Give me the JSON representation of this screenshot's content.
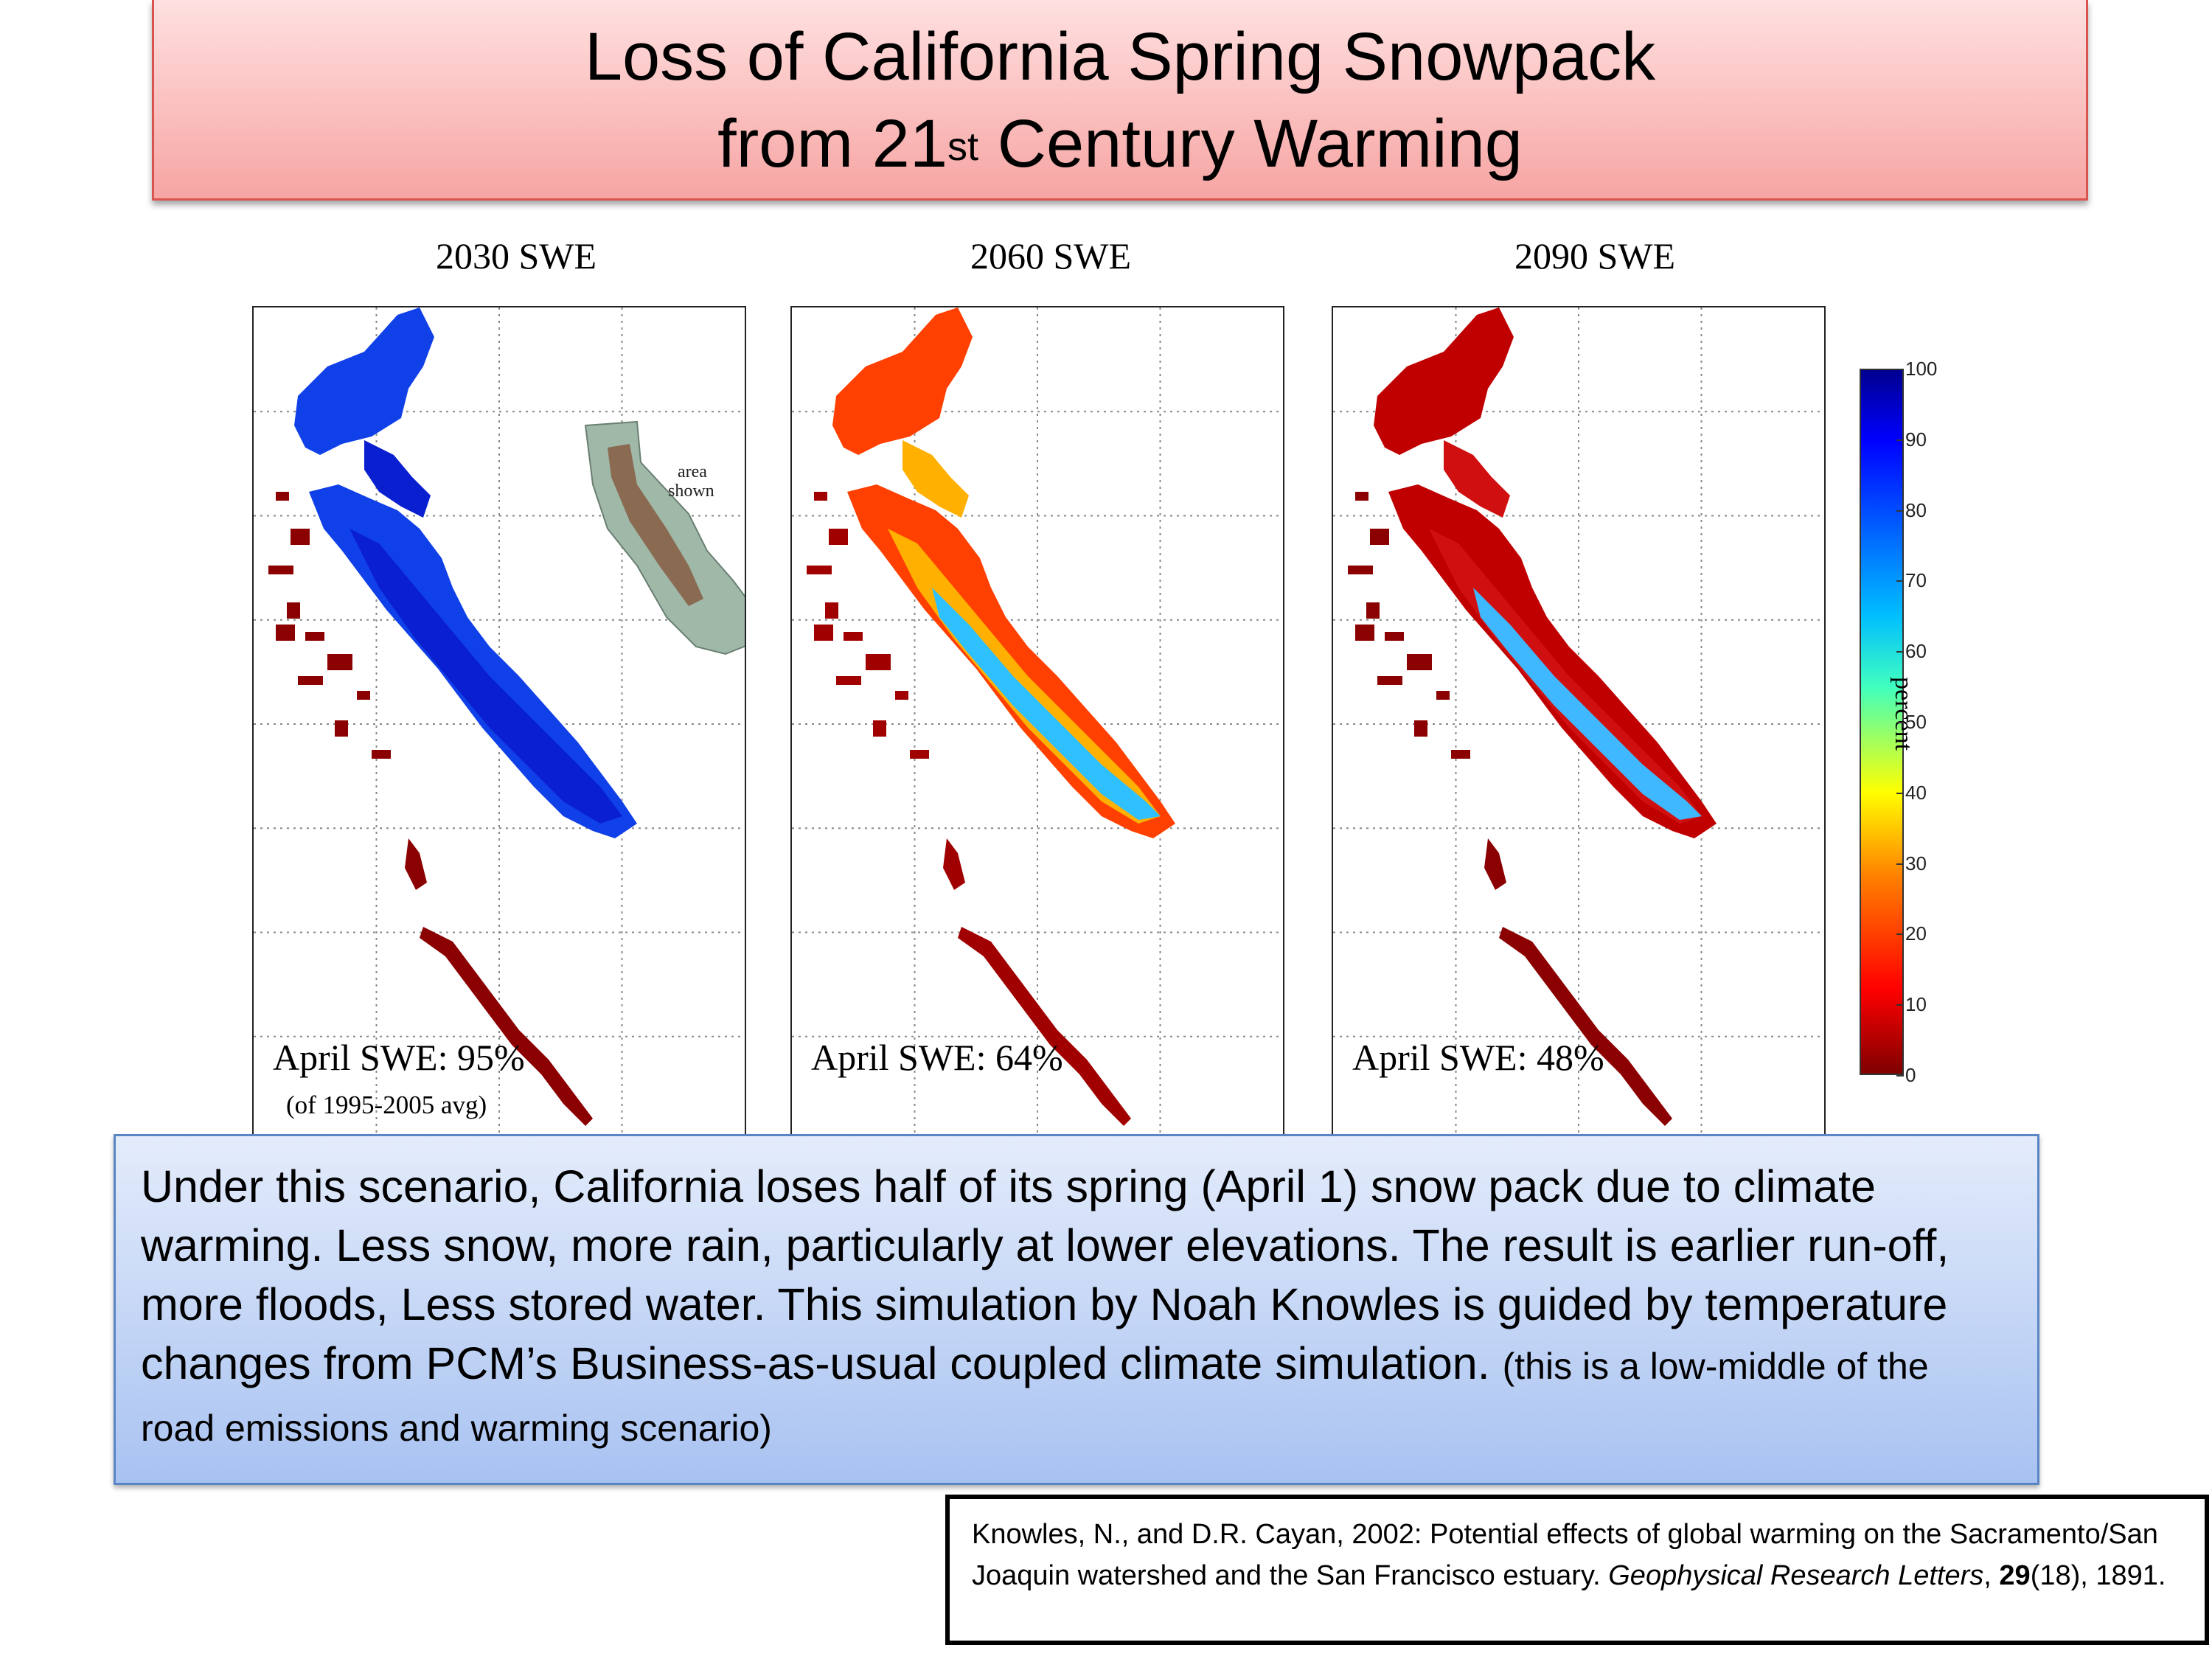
{
  "title": {
    "line1": "Loss of California Spring Snowpack",
    "line2_prefix": "from 21",
    "line2_sup": "st",
    "line2_suffix": " Century Warming"
  },
  "panels": [
    {
      "title": "2030 SWE",
      "swe_label": "April SWE: 95%",
      "sub_label": "(of 1995-2005 avg)",
      "swe_percent": 95
    },
    {
      "title": "2060 SWE",
      "swe_label": "April SWE: 64%",
      "sub_label": "",
      "swe_percent": 64
    },
    {
      "title": "2090 SWE",
      "swe_label": "April SWE: 48%",
      "sub_label": "",
      "swe_percent": 48
    }
  ],
  "inset": {
    "line1": "area",
    "line2": "shown"
  },
  "colorbar": {
    "label": "percent",
    "ticks": [
      "100",
      "90",
      "80",
      "70",
      "60",
      "50",
      "40",
      "30",
      "20",
      "10",
      "0"
    ],
    "colors": {
      "high": "#00008f",
      "mid_high": "#00bfff",
      "mid": "#ffff00",
      "mid_low": "#ff4000",
      "low": "#7f0000"
    }
  },
  "description": {
    "main": "Under this scenario, California loses half of its spring (April 1) snow pack due to climate warming. Less snow, more rain,  particularly at lower elevations. The result is earlier run-off, more floods,  Less stored water.  This simulation by Noah Knowles is guided by temperature changes from PCM’s Business-as-usual coupled climate simulation.",
    "note": "(this is a low-middle of the road emissions and warming scenario)"
  },
  "citation": {
    "authors": "Knowles, N., and D.R. Cayan, 2002: Potential effects of global warming on the Sacramento/San Joaquin watershed and the San Francisco estuary. ",
    "journal": "Geophysical Research Letters",
    "sep": ", ",
    "volume": "29",
    "issue_pages": "(18), 1891."
  }
}
